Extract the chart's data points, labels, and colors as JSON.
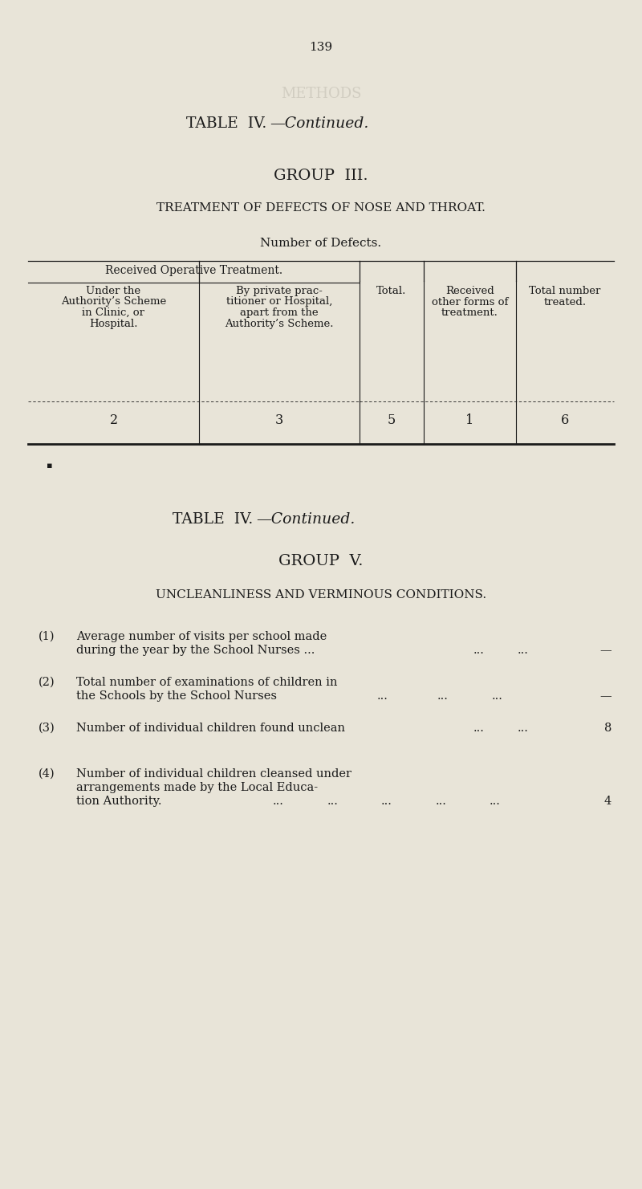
{
  "page_number": "139",
  "bg_color": "#e8e4d8",
  "text_color": "#1a1a1a",
  "page_title1_plain": "TABLE  IV.",
  "page_title1_italic": "—Continued.",
  "group3_heading": "GROUP  III.",
  "group3_subheading": "TREATMENT OF DEFECTS OF NOSE AND THROAT.",
  "group3_subheading2": "Number of Defects.",
  "table_col1_header": [
    "Under the",
    "Authority’s Scheme",
    "in Clinic, or",
    "Hospital."
  ],
  "table_col2_header": [
    "By private prac-",
    "titioner or Hospital,",
    "apart from the",
    "Authority’s Scheme."
  ],
  "table_col3_header": [
    "Total."
  ],
  "table_col4_header": [
    "Received",
    "other forms of",
    "treatment."
  ],
  "table_col5_header": [
    "Total number",
    "treated."
  ],
  "table_span_header": "Received Operative Treatment.",
  "table_row_values": [
    "2",
    "3",
    "5",
    "1",
    "6"
  ],
  "page_title2_plain": "TABLE  IV.",
  "page_title2_italic": "—Continued.",
  "group5_heading": "GROUP  V.",
  "group5_subheading": "UNCLEANLINESS AND VERMINOUS CONDITIONS.",
  "item1_num": "(1)",
  "item1_lines": [
    "Average number of visits per school made",
    "during the year by the School Nurses ..."
  ],
  "item1_dots": [
    "...",
    "..."
  ],
  "item1_value": "—",
  "item2_num": "(2)",
  "item2_lines": [
    "Total number of examinations of children in",
    "the Schools by the School Nurses"
  ],
  "item2_dots": [
    "...",
    "...",
    "..."
  ],
  "item2_value": "—",
  "item3_num": "(3)",
  "item3_lines": [
    "Number of individual children found unclean"
  ],
  "item3_dots": [
    "...",
    "..."
  ],
  "item3_value": "8",
  "item4_num": "(4)",
  "item4_lines": [
    "Number of individual children cleansed under",
    "arrangements made by the Local Educa-",
    "tion Authority."
  ],
  "item4_dots": [
    "...",
    "...",
    "...",
    "...",
    "..."
  ],
  "item4_value": "4",
  "watermark_text": "METHODS",
  "watermark_color": "#c8c4b8"
}
